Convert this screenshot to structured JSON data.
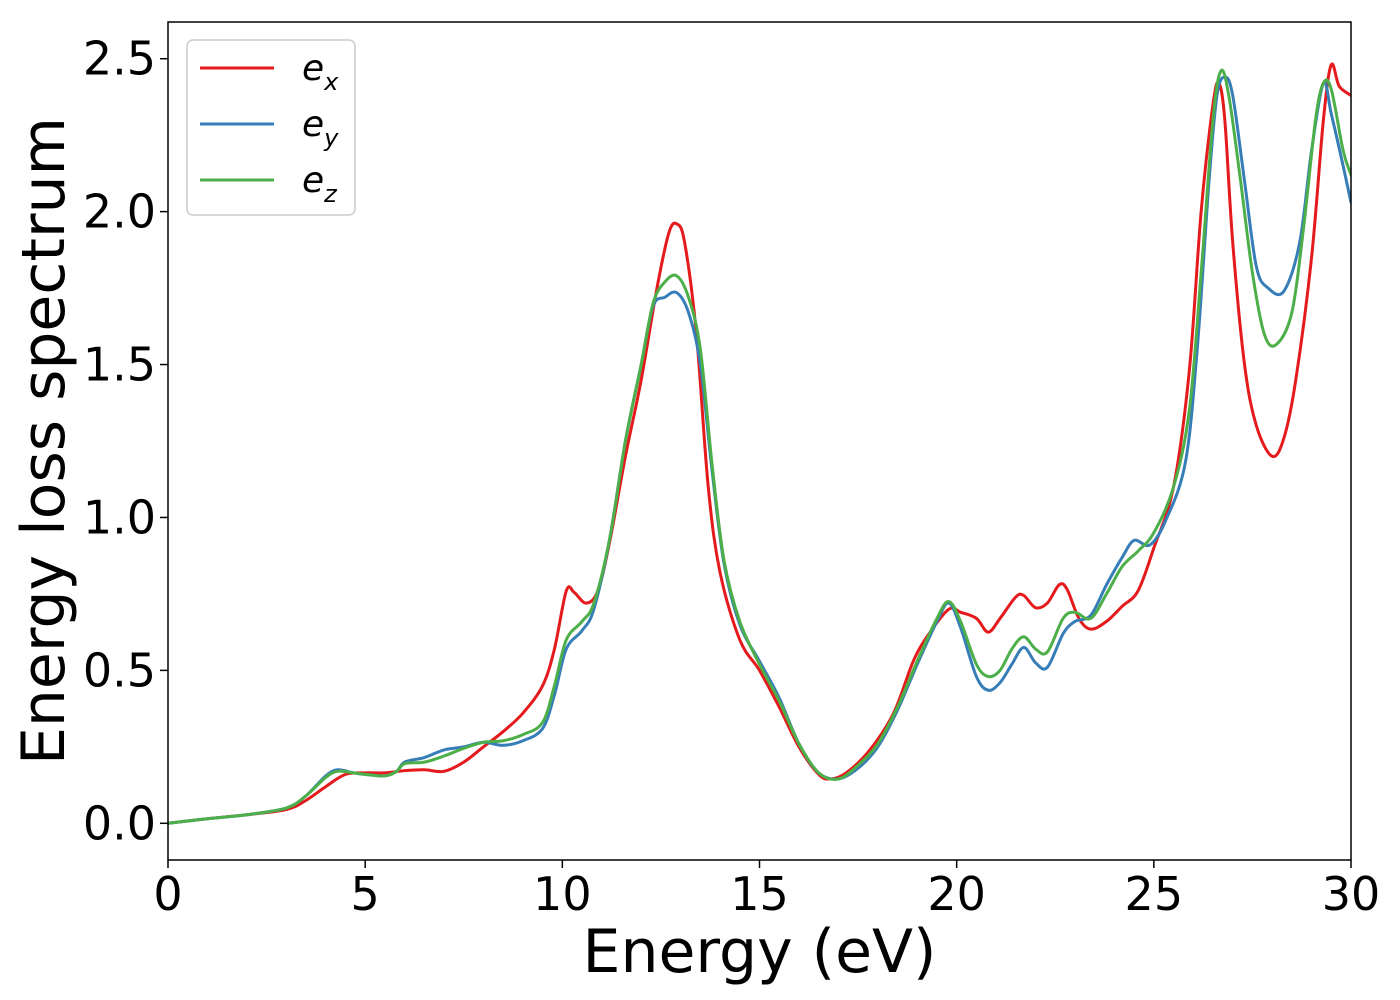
{
  "chart_data": {
    "type": "line",
    "xlabel": "Energy (eV)",
    "ylabel": "Energy loss spectrum",
    "xlim": [
      0,
      30
    ],
    "ylim": [
      -0.12,
      2.62
    ],
    "xticks": [
      0,
      5,
      10,
      15,
      20,
      25,
      30
    ],
    "xtick_labels": [
      "0",
      "5",
      "10",
      "15",
      "20",
      "25",
      "30"
    ],
    "yticks": [
      0.0,
      0.5,
      1.0,
      1.5,
      2.0,
      2.5
    ],
    "ytick_labels": [
      "0.0",
      "0.5",
      "1.0",
      "1.5",
      "2.0",
      "2.5"
    ],
    "grid": false,
    "legend_position": "top-left",
    "series": [
      {
        "name": "e_x",
        "legend_base": "e",
        "legend_sub": "x",
        "color": "#e41a1c",
        "points": [
          [
            0,
            0.0
          ],
          [
            1,
            0.015
          ],
          [
            2,
            0.028
          ],
          [
            3,
            0.045
          ],
          [
            3.5,
            0.075
          ],
          [
            4,
            0.12
          ],
          [
            4.5,
            0.16
          ],
          [
            5,
            0.165
          ],
          [
            5.5,
            0.165
          ],
          [
            6,
            0.172
          ],
          [
            6.5,
            0.175
          ],
          [
            7,
            0.17
          ],
          [
            7.5,
            0.2
          ],
          [
            8,
            0.25
          ],
          [
            8.5,
            0.3
          ],
          [
            9,
            0.36
          ],
          [
            9.5,
            0.45
          ],
          [
            9.8,
            0.57
          ],
          [
            10.1,
            0.76
          ],
          [
            10.3,
            0.755
          ],
          [
            10.6,
            0.72
          ],
          [
            10.9,
            0.76
          ],
          [
            11.2,
            0.92
          ],
          [
            11.6,
            1.2
          ],
          [
            12,
            1.45
          ],
          [
            12.4,
            1.75
          ],
          [
            12.7,
            1.93
          ],
          [
            12.9,
            1.96
          ],
          [
            13.1,
            1.9
          ],
          [
            13.4,
            1.6
          ],
          [
            13.7,
            1.1
          ],
          [
            14,
            0.82
          ],
          [
            14.5,
            0.6
          ],
          [
            15,
            0.5
          ],
          [
            15.5,
            0.38
          ],
          [
            16,
            0.25
          ],
          [
            16.5,
            0.16
          ],
          [
            16.8,
            0.145
          ],
          [
            17.2,
            0.165
          ],
          [
            17.8,
            0.24
          ],
          [
            18.4,
            0.36
          ],
          [
            18.9,
            0.53
          ],
          [
            19.3,
            0.62
          ],
          [
            19.8,
            0.7
          ],
          [
            20.1,
            0.69
          ],
          [
            20.5,
            0.67
          ],
          [
            20.8,
            0.625
          ],
          [
            21.1,
            0.67
          ],
          [
            21.5,
            0.74
          ],
          [
            21.7,
            0.745
          ],
          [
            22,
            0.705
          ],
          [
            22.3,
            0.72
          ],
          [
            22.6,
            0.78
          ],
          [
            22.8,
            0.765
          ],
          [
            23.1,
            0.67
          ],
          [
            23.4,
            0.635
          ],
          [
            23.8,
            0.66
          ],
          [
            24.2,
            0.71
          ],
          [
            24.6,
            0.76
          ],
          [
            25,
            0.9
          ],
          [
            25.5,
            1.1
          ],
          [
            25.9,
            1.48
          ],
          [
            26.2,
            2.0
          ],
          [
            26.5,
            2.35
          ],
          [
            26.65,
            2.42
          ],
          [
            26.8,
            2.3
          ],
          [
            27,
            1.9
          ],
          [
            27.3,
            1.5
          ],
          [
            27.6,
            1.3
          ],
          [
            28,
            1.2
          ],
          [
            28.3,
            1.26
          ],
          [
            28.6,
            1.45
          ],
          [
            29,
            1.85
          ],
          [
            29.3,
            2.3
          ],
          [
            29.5,
            2.48
          ],
          [
            29.7,
            2.41
          ],
          [
            30,
            2.38
          ]
        ]
      },
      {
        "name": "e_y",
        "legend_base": "e",
        "legend_sub": "y",
        "color": "#377eb8",
        "points": [
          [
            0,
            0.0
          ],
          [
            1,
            0.015
          ],
          [
            2,
            0.028
          ],
          [
            3,
            0.05
          ],
          [
            3.5,
            0.09
          ],
          [
            4,
            0.155
          ],
          [
            4.3,
            0.175
          ],
          [
            4.7,
            0.165
          ],
          [
            5,
            0.16
          ],
          [
            5.5,
            0.155
          ],
          [
            5.8,
            0.17
          ],
          [
            6,
            0.2
          ],
          [
            6.5,
            0.215
          ],
          [
            7,
            0.24
          ],
          [
            7.5,
            0.25
          ],
          [
            8,
            0.265
          ],
          [
            8.5,
            0.255
          ],
          [
            9,
            0.27
          ],
          [
            9.5,
            0.31
          ],
          [
            9.8,
            0.42
          ],
          [
            10.1,
            0.57
          ],
          [
            10.5,
            0.63
          ],
          [
            10.8,
            0.7
          ],
          [
            11.2,
            0.93
          ],
          [
            11.6,
            1.25
          ],
          [
            12,
            1.5
          ],
          [
            12.3,
            1.69
          ],
          [
            12.6,
            1.72
          ],
          [
            12.9,
            1.735
          ],
          [
            13.2,
            1.67
          ],
          [
            13.5,
            1.5
          ],
          [
            13.8,
            1.15
          ],
          [
            14.1,
            0.85
          ],
          [
            14.5,
            0.65
          ],
          [
            15,
            0.53
          ],
          [
            15.5,
            0.41
          ],
          [
            16,
            0.26
          ],
          [
            16.5,
            0.165
          ],
          [
            17,
            0.145
          ],
          [
            17.5,
            0.18
          ],
          [
            18,
            0.25
          ],
          [
            18.5,
            0.37
          ],
          [
            19,
            0.52
          ],
          [
            19.5,
            0.66
          ],
          [
            19.8,
            0.72
          ],
          [
            20.1,
            0.64
          ],
          [
            20.5,
            0.48
          ],
          [
            20.8,
            0.435
          ],
          [
            21.1,
            0.46
          ],
          [
            21.4,
            0.52
          ],
          [
            21.7,
            0.575
          ],
          [
            22,
            0.525
          ],
          [
            22.3,
            0.51
          ],
          [
            22.7,
            0.62
          ],
          [
            23,
            0.66
          ],
          [
            23.4,
            0.68
          ],
          [
            23.8,
            0.78
          ],
          [
            24.2,
            0.87
          ],
          [
            24.5,
            0.925
          ],
          [
            24.9,
            0.91
          ],
          [
            25.3,
            0.99
          ],
          [
            25.8,
            1.18
          ],
          [
            26.1,
            1.55
          ],
          [
            26.4,
            2.1
          ],
          [
            26.6,
            2.38
          ],
          [
            26.8,
            2.44
          ],
          [
            27,
            2.38
          ],
          [
            27.3,
            2.1
          ],
          [
            27.6,
            1.82
          ],
          [
            27.9,
            1.75
          ],
          [
            28.3,
            1.74
          ],
          [
            28.7,
            1.9
          ],
          [
            29,
            2.2
          ],
          [
            29.3,
            2.42
          ],
          [
            29.5,
            2.32
          ],
          [
            29.8,
            2.15
          ],
          [
            30,
            2.03
          ]
        ]
      },
      {
        "name": "e_z",
        "legend_base": "e",
        "legend_sub": "z",
        "color": "#4daf4a",
        "points": [
          [
            0,
            0.0
          ],
          [
            1,
            0.015
          ],
          [
            2,
            0.028
          ],
          [
            3,
            0.05
          ],
          [
            3.5,
            0.09
          ],
          [
            4,
            0.15
          ],
          [
            4.3,
            0.17
          ],
          [
            4.7,
            0.165
          ],
          [
            5,
            0.16
          ],
          [
            5.5,
            0.155
          ],
          [
            5.8,
            0.17
          ],
          [
            6,
            0.195
          ],
          [
            6.5,
            0.2
          ],
          [
            7,
            0.22
          ],
          [
            7.5,
            0.245
          ],
          [
            8,
            0.265
          ],
          [
            8.5,
            0.27
          ],
          [
            9,
            0.29
          ],
          [
            9.5,
            0.33
          ],
          [
            9.8,
            0.45
          ],
          [
            10.1,
            0.6
          ],
          [
            10.5,
            0.66
          ],
          [
            10.8,
            0.72
          ],
          [
            11.2,
            0.93
          ],
          [
            11.6,
            1.25
          ],
          [
            12,
            1.5
          ],
          [
            12.3,
            1.7
          ],
          [
            12.6,
            1.77
          ],
          [
            12.9,
            1.79
          ],
          [
            13.2,
            1.72
          ],
          [
            13.5,
            1.55
          ],
          [
            13.8,
            1.17
          ],
          [
            14.1,
            0.86
          ],
          [
            14.5,
            0.66
          ],
          [
            15,
            0.52
          ],
          [
            15.5,
            0.4
          ],
          [
            16,
            0.26
          ],
          [
            16.5,
            0.165
          ],
          [
            17,
            0.145
          ],
          [
            17.5,
            0.19
          ],
          [
            18,
            0.26
          ],
          [
            18.5,
            0.38
          ],
          [
            19,
            0.53
          ],
          [
            19.5,
            0.67
          ],
          [
            19.8,
            0.725
          ],
          [
            20.1,
            0.66
          ],
          [
            20.5,
            0.52
          ],
          [
            20.8,
            0.48
          ],
          [
            21.1,
            0.5
          ],
          [
            21.4,
            0.57
          ],
          [
            21.7,
            0.61
          ],
          [
            22,
            0.57
          ],
          [
            22.3,
            0.56
          ],
          [
            22.7,
            0.67
          ],
          [
            23,
            0.69
          ],
          [
            23.4,
            0.67
          ],
          [
            23.8,
            0.75
          ],
          [
            24.2,
            0.84
          ],
          [
            24.6,
            0.89
          ],
          [
            25,
            0.95
          ],
          [
            25.5,
            1.1
          ],
          [
            25.9,
            1.35
          ],
          [
            26.2,
            1.8
          ],
          [
            26.5,
            2.3
          ],
          [
            26.7,
            2.46
          ],
          [
            26.9,
            2.38
          ],
          [
            27.2,
            2.1
          ],
          [
            27.5,
            1.8
          ],
          [
            27.8,
            1.6
          ],
          [
            28.1,
            1.565
          ],
          [
            28.5,
            1.67
          ],
          [
            28.8,
            1.95
          ],
          [
            29.1,
            2.3
          ],
          [
            29.3,
            2.42
          ],
          [
            29.5,
            2.4
          ],
          [
            29.8,
            2.2
          ],
          [
            30,
            2.12
          ]
        ]
      }
    ]
  }
}
